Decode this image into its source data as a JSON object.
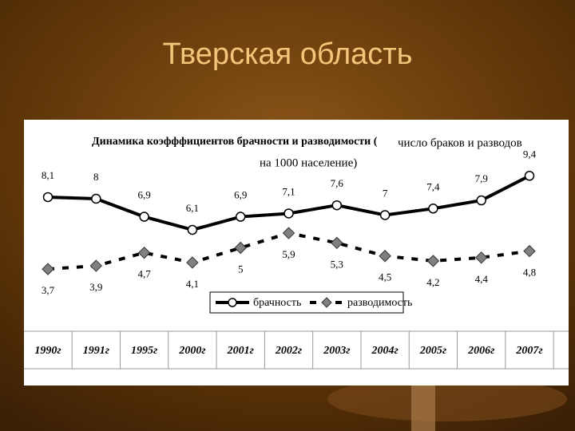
{
  "slide_title": "Тверская область",
  "chart_data": {
    "type": "line",
    "title_lines": [
      "Динамика коэфффициентов брачности и разводимости (",
      "число браков и разводов",
      "на 1000 население)"
    ],
    "categories": [
      "1990г",
      "1991г",
      "1995г",
      "2000г",
      "2001г",
      "2002г",
      "2003г",
      "2004г",
      "2005г",
      "2006г",
      "2007г"
    ],
    "series": [
      {
        "name": "брачность",
        "color": "#000000",
        "marker": "circle",
        "dashed": false,
        "values": [
          8.1,
          8,
          6.9,
          6.1,
          6.9,
          7.1,
          7.6,
          7,
          7.4,
          7.9,
          9.4
        ],
        "value_labels": [
          "8,1",
          "8",
          "6,9",
          "6,1",
          "6,9",
          "7,1",
          "7,6",
          "7",
          "7,4",
          "7,9",
          "9,4"
        ]
      },
      {
        "name": "разводимость",
        "color": "#000000",
        "marker": "diamond",
        "dashed": true,
        "values": [
          3.7,
          3.9,
          4.7,
          4.1,
          5,
          5.9,
          5.3,
          4.5,
          4.2,
          4.4,
          4.8
        ],
        "value_labels": [
          "3,7",
          "3,9",
          "4,7",
          "4,1",
          "5",
          "5,9",
          "5,3",
          "4,5",
          "4,2",
          "4,4",
          "4,8"
        ]
      }
    ]
  }
}
